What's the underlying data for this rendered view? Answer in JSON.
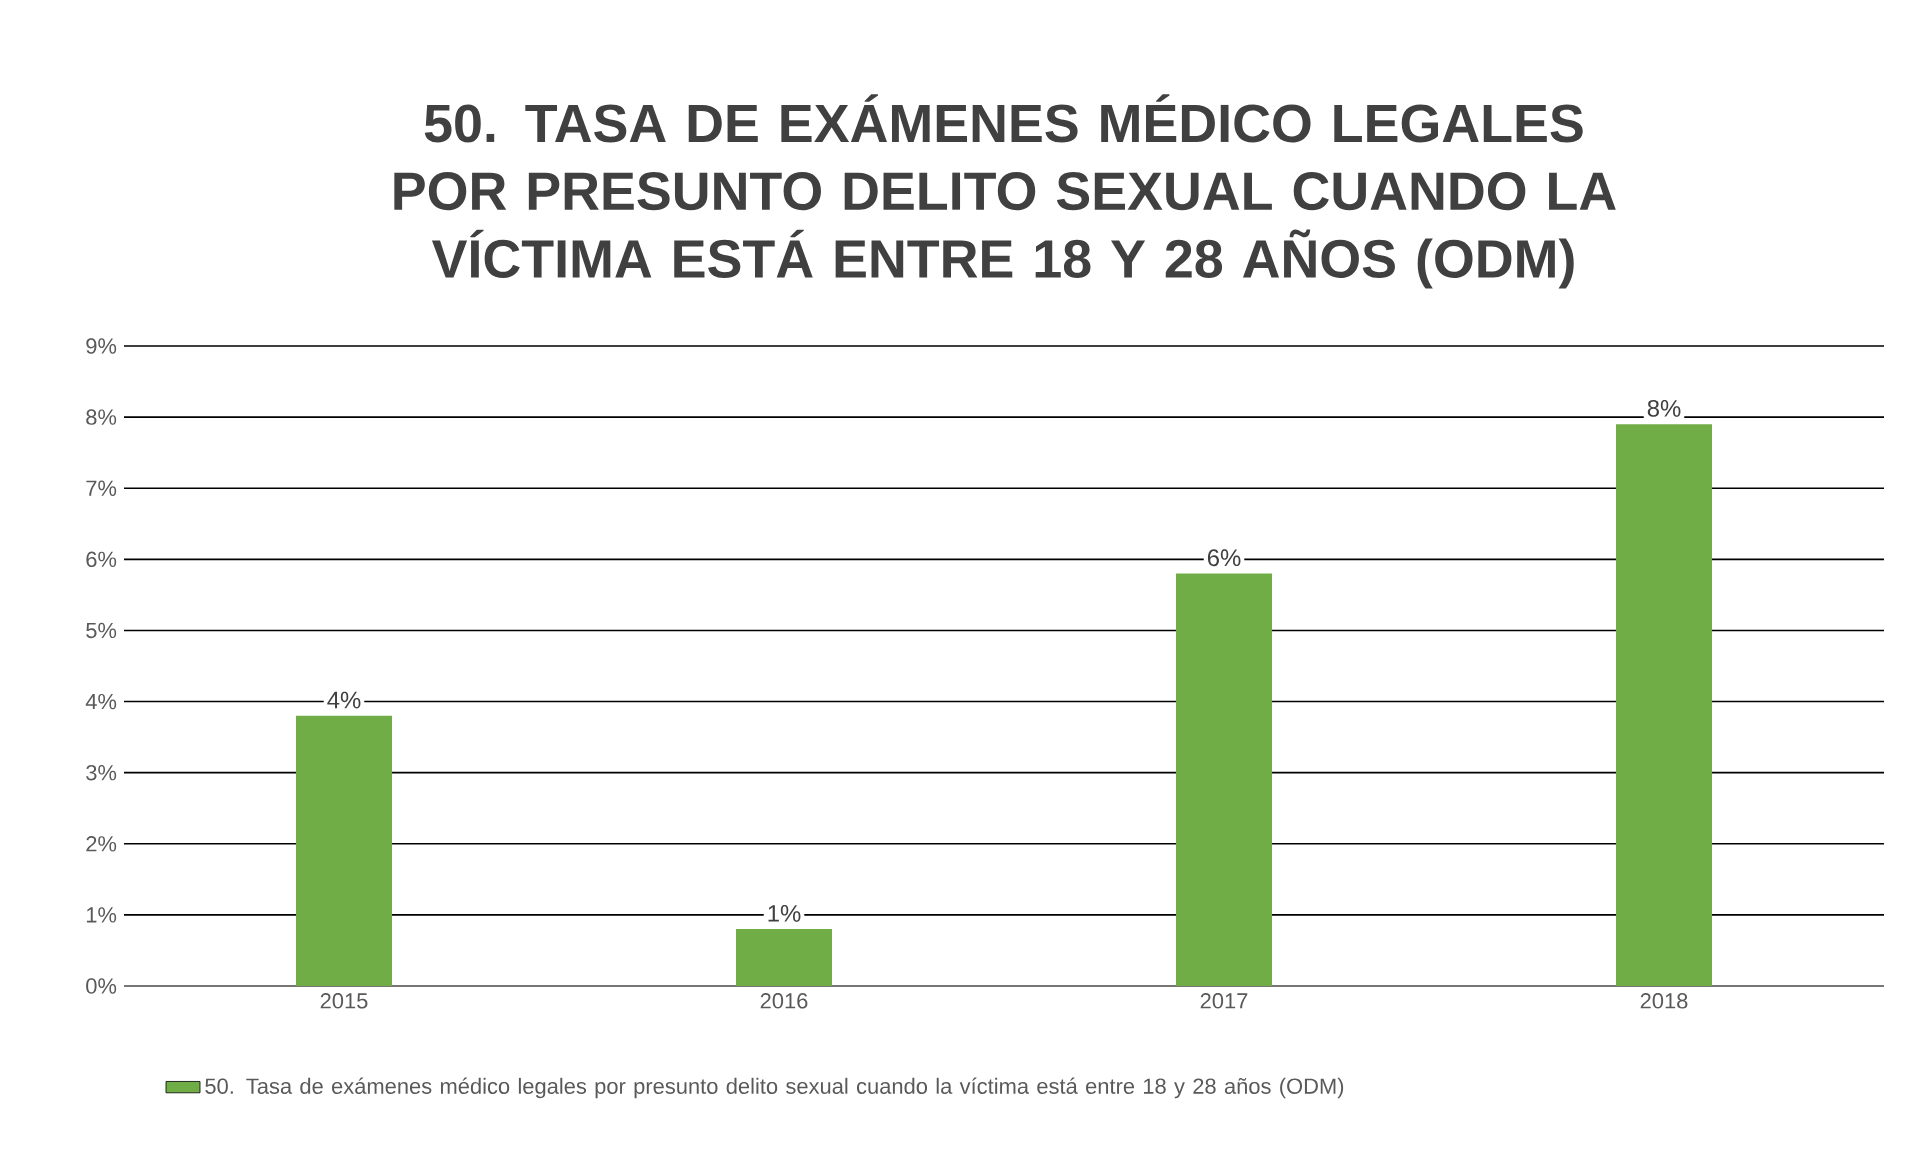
{
  "chart_data": {
    "type": "bar",
    "title": "50. TASA DE EXÁMENES MÉDICO LEGALES POR PRESUNTO DELITO SEXUAL CUANDO LA VÍCTIMA ESTÁ ENTRE 18 Y 28 AÑOS (ODM)",
    "categories": [
      "2015",
      "2016",
      "2017",
      "2018"
    ],
    "series": [
      {
        "name": "50. Tasa de exámenes médico legales por presunto delito sexual cuando la víctima está entre 18 y 28 años (ODM)",
        "color": "#70ad47",
        "values": [
          3.8,
          0.8,
          5.8,
          7.9
        ],
        "value_labels": [
          "4%",
          "1%",
          "6%",
          "8%"
        ]
      }
    ],
    "ylim": [
      0,
      9
    ],
    "yticks": [
      {
        "value": 0,
        "label": "0%"
      },
      {
        "value": 1,
        "label": "1%"
      },
      {
        "value": 2,
        "label": "2%"
      },
      {
        "value": 3,
        "label": "3%"
      },
      {
        "value": 4,
        "label": "4%"
      },
      {
        "value": 5,
        "label": "5%"
      },
      {
        "value": 6,
        "label": "6%"
      },
      {
        "value": 7,
        "label": "7%"
      },
      {
        "value": 8,
        "label": "8%"
      },
      {
        "value": 9,
        "label": "9%"
      }
    ],
    "grid": "y",
    "legend": "bottom"
  }
}
